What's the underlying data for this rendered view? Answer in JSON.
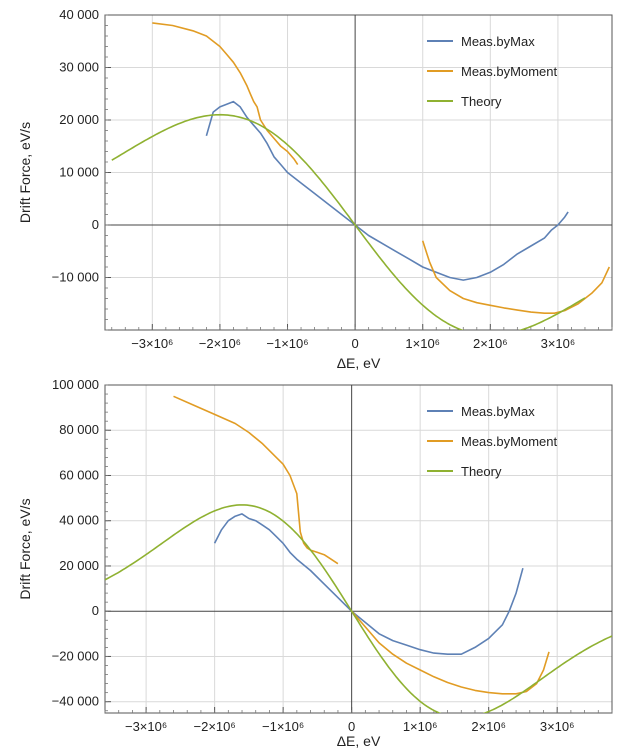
{
  "chart_data": [
    {
      "type": "line",
      "title": "",
      "xlabel": "ΔE, eV",
      "ylabel": "Drift Force, eV/s",
      "xlim": [
        -3700000,
        3800000
      ],
      "ylim": [
        -20000,
        40000
      ],
      "grid": true,
      "legend_position": "top-right",
      "x_ticks": [
        {
          "value": -3000000,
          "label": "−3×10⁶"
        },
        {
          "value": -2000000,
          "label": "−2×10⁶"
        },
        {
          "value": -1000000,
          "label": "−1×10⁶"
        },
        {
          "value": 0,
          "label": "0"
        },
        {
          "value": 1000000,
          "label": "1×10⁶"
        },
        {
          "value": 2000000,
          "label": "2×10⁶"
        },
        {
          "value": 3000000,
          "label": "3×10⁶"
        }
      ],
      "y_ticks": [
        {
          "value": 40000,
          "label": "40 000"
        },
        {
          "value": 30000,
          "label": "30 000"
        },
        {
          "value": 20000,
          "label": "20 000"
        },
        {
          "value": 10000,
          "label": "10 000"
        },
        {
          "value": 0,
          "label": "0"
        },
        {
          "value": -10000,
          "label": "−10 000"
        }
      ],
      "series": [
        {
          "name": "Meas.byMax",
          "color": "#5e81b5",
          "x": [
            -2200000,
            -2100000,
            -2000000,
            -1900000,
            -1800000,
            -1700000,
            -1600000,
            -1500000,
            -1400000,
            -1300000,
            -1200000,
            -1100000,
            -1000000,
            -800000,
            -600000,
            -400000,
            -200000,
            0,
            200000,
            400000,
            600000,
            800000,
            1000000,
            1200000,
            1400000,
            1600000,
            1800000,
            2000000,
            2200000,
            2400000,
            2600000,
            2800000,
            2900000,
            3000000,
            3100000,
            3150000
          ],
          "y": [
            17000,
            21500,
            22500,
            23000,
            23500,
            22500,
            20500,
            19000,
            17500,
            15500,
            13000,
            11500,
            10000,
            8000,
            6000,
            4000,
            2000,
            0,
            -2000,
            -3500,
            -5000,
            -6500,
            -8000,
            -9000,
            -10000,
            -10500,
            -10000,
            -9000,
            -7500,
            -5500,
            -4000,
            -2500,
            -1000,
            0,
            1500,
            2500
          ]
        },
        {
          "name": "Meas.byMoment",
          "color": "#e19c24",
          "segments": [
            {
              "x": [
                -3000000,
                -2700000,
                -2400000,
                -2200000,
                -2000000,
                -1900000,
                -1800000,
                -1700000,
                -1600000,
                -1550000,
                -1500000,
                -1450000,
                -1400000,
                -1300000,
                -1200000,
                -1100000,
                -1000000,
                -900000,
                -850000
              ],
              "y": [
                38500,
                38000,
                37000,
                36000,
                34000,
                32500,
                31000,
                29000,
                26500,
                25000,
                23500,
                22500,
                20000,
                18000,
                16500,
                15000,
                14000,
                12500,
                11500
              ]
            },
            {
              "x": [
                1000000,
                1100000,
                1200000,
                1400000,
                1600000,
                1800000,
                2000000,
                2200000,
                2400000,
                2600000,
                2800000,
                2950000,
                3100000,
                3300000,
                3500000,
                3650000,
                3760000
              ],
              "y": [
                -3000,
                -7000,
                -10000,
                -12500,
                -14000,
                -14800,
                -15300,
                -15800,
                -16200,
                -16600,
                -16800,
                -16800,
                -16300,
                -15000,
                -13000,
                -11000,
                -8000
              ]
            }
          ]
        },
        {
          "name": "Theory",
          "color": "#8fb131",
          "function": "theory",
          "amplitude": 21000,
          "sigma": 2000000,
          "x_range": [
            -3600000,
            3400000
          ]
        }
      ]
    },
    {
      "type": "line",
      "title": "",
      "xlabel": "ΔE, eV",
      "ylabel": "Drift Force, eV/s",
      "xlim": [
        -3600000,
        3800000
      ],
      "ylim": [
        -45000,
        100000
      ],
      "grid": true,
      "legend_position": "top-right",
      "x_ticks": [
        {
          "value": -3000000,
          "label": "−3×10⁶"
        },
        {
          "value": -2000000,
          "label": "−2×10⁶"
        },
        {
          "value": -1000000,
          "label": "−1×10⁶"
        },
        {
          "value": 0,
          "label": "0"
        },
        {
          "value": 1000000,
          "label": "1×10⁶"
        },
        {
          "value": 2000000,
          "label": "2×10⁶"
        },
        {
          "value": 3000000,
          "label": "3×10⁶"
        }
      ],
      "y_ticks": [
        {
          "value": 100000,
          "label": "100 000"
        },
        {
          "value": 80000,
          "label": "80 000"
        },
        {
          "value": 60000,
          "label": "60 000"
        },
        {
          "value": 40000,
          "label": "40 000"
        },
        {
          "value": 20000,
          "label": "20 000"
        },
        {
          "value": 0,
          "label": "0"
        },
        {
          "value": -20000,
          "label": "−20 000"
        },
        {
          "value": -40000,
          "label": "−40 000"
        }
      ],
      "series": [
        {
          "name": "Meas.byMax",
          "color": "#5e81b5",
          "x": [
            -2000000,
            -1900000,
            -1800000,
            -1700000,
            -1600000,
            -1500000,
            -1400000,
            -1300000,
            -1200000,
            -1100000,
            -1000000,
            -900000,
            -800000,
            -600000,
            -400000,
            -200000,
            0,
            200000,
            400000,
            600000,
            800000,
            1000000,
            1200000,
            1400000,
            1600000,
            1800000,
            2000000,
            2200000,
            2300000,
            2400000,
            2500000
          ],
          "y": [
            30000,
            36000,
            40000,
            42000,
            43000,
            41000,
            40000,
            38000,
            36000,
            33000,
            30000,
            26000,
            23000,
            18000,
            12000,
            6000,
            0,
            -5000,
            -10000,
            -13000,
            -15000,
            -17000,
            -18500,
            -19000,
            -19000,
            -16000,
            -12000,
            -6000,
            0,
            8000,
            19000
          ]
        },
        {
          "name": "Meas.byMoment",
          "color": "#e19c24",
          "segments": [
            {
              "x": [
                -2600000,
                -2300000,
                -2000000,
                -1700000,
                -1500000,
                -1300000,
                -1200000,
                -1100000,
                -1000000,
                -900000,
                -800000,
                -750000,
                -700000,
                -650000,
                -600000,
                -500000,
                -400000,
                -300000,
                -200000
              ],
              "y": [
                95000,
                91000,
                87000,
                83000,
                79000,
                74000,
                71000,
                68000,
                65000,
                60000,
                52000,
                35000,
                30000,
                28000,
                27000,
                26000,
                25000,
                23000,
                21000
              ]
            },
            {
              "x": [
                0,
                200000,
                400000,
                600000,
                800000,
                1000000,
                1200000,
                1400000,
                1600000,
                1800000,
                2000000,
                2200000,
                2400000,
                2550000,
                2700000,
                2800000,
                2880000
              ],
              "y": [
                0,
                -7000,
                -14000,
                -19000,
                -23000,
                -26000,
                -29000,
                -31500,
                -33500,
                -35000,
                -36000,
                -36500,
                -36500,
                -35500,
                -32000,
                -26000,
                -18000
              ]
            }
          ]
        },
        {
          "name": "Theory",
          "color": "#8fb131",
          "function": "theory",
          "amplitude": 47000,
          "sigma": 1600000,
          "x_range": [
            -3600000,
            3800000
          ]
        }
      ]
    }
  ]
}
